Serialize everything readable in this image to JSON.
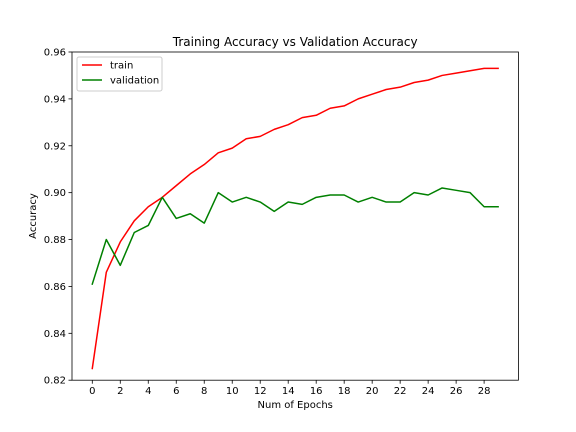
{
  "chart_data": {
    "type": "line",
    "title": "Training Accuracy vs Validation Accuracy",
    "xlabel": "Num of Epochs",
    "ylabel": "Accuracy",
    "xlim": [
      -1.45,
      30.45
    ],
    "ylim": [
      0.82,
      0.96
    ],
    "xticks": [
      0,
      2,
      4,
      6,
      8,
      10,
      12,
      14,
      16,
      18,
      20,
      22,
      24,
      26,
      28
    ],
    "yticks": [
      0.82,
      0.84,
      0.86,
      0.88,
      0.9,
      0.92,
      0.94,
      0.96
    ],
    "ytick_labels": [
      "0.82",
      "0.84",
      "0.86",
      "0.88",
      "0.90",
      "0.92",
      "0.94",
      "0.96"
    ],
    "grid": false,
    "legend_position": "top-left",
    "x": [
      0,
      1,
      2,
      3,
      4,
      5,
      6,
      7,
      8,
      9,
      10,
      11,
      12,
      13,
      14,
      15,
      16,
      17,
      18,
      19,
      20,
      21,
      22,
      23,
      24,
      25,
      26,
      27,
      28,
      29
    ],
    "series": [
      {
        "name": "train",
        "color": "#ff0000",
        "values": [
          0.825,
          0.866,
          0.879,
          0.888,
          0.894,
          0.898,
          0.903,
          0.908,
          0.912,
          0.917,
          0.919,
          0.923,
          0.924,
          0.927,
          0.929,
          0.932,
          0.933,
          0.936,
          0.937,
          0.94,
          0.942,
          0.944,
          0.945,
          0.947,
          0.948,
          0.95,
          0.951,
          0.952,
          0.953,
          0.953
        ]
      },
      {
        "name": "validation",
        "color": "#008000",
        "values": [
          0.861,
          0.88,
          0.869,
          0.883,
          0.886,
          0.898,
          0.889,
          0.891,
          0.887,
          0.9,
          0.896,
          0.898,
          0.896,
          0.892,
          0.896,
          0.895,
          0.898,
          0.899,
          0.899,
          0.896,
          0.898,
          0.896,
          0.896,
          0.9,
          0.899,
          0.902,
          0.901,
          0.9,
          0.894,
          0.894
        ]
      }
    ]
  }
}
